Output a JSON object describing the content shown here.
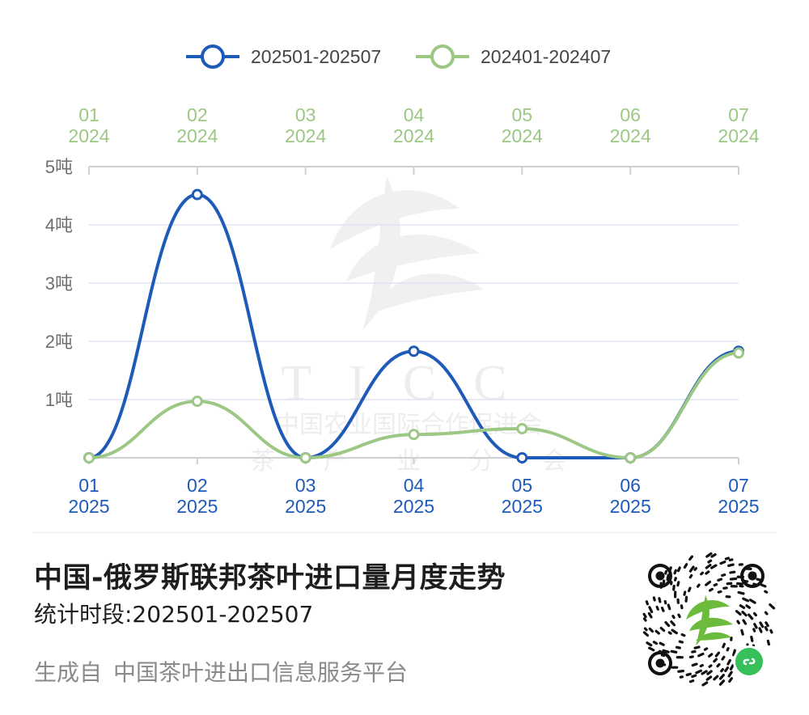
{
  "chart_data": {
    "type": "line",
    "legend": {
      "position": "top-center",
      "entries": [
        "202501-202507",
        "202401-202407"
      ]
    },
    "x_bottom": {
      "categories": [
        {
          "month": "01",
          "year": "2025"
        },
        {
          "month": "02",
          "year": "2025"
        },
        {
          "month": "03",
          "year": "2025"
        },
        {
          "month": "04",
          "year": "2025"
        },
        {
          "month": "05",
          "year": "2025"
        },
        {
          "month": "06",
          "year": "2025"
        },
        {
          "month": "07",
          "year": "2025"
        }
      ]
    },
    "x_top": {
      "categories": [
        {
          "month": "01",
          "year": "2024"
        },
        {
          "month": "02",
          "year": "2024"
        },
        {
          "month": "03",
          "year": "2024"
        },
        {
          "month": "04",
          "year": "2024"
        },
        {
          "month": "05",
          "year": "2024"
        },
        {
          "month": "06",
          "year": "2024"
        },
        {
          "month": "07",
          "year": "2024"
        }
      ]
    },
    "y_ticks": [
      "1吨",
      "2吨",
      "3吨",
      "4吨",
      "5吨"
    ],
    "ylim": [
      0,
      5
    ],
    "grid": true,
    "series": [
      {
        "name": "202501-202507",
        "color": "#1e5bb8",
        "values": [
          0,
          4.52,
          0,
          1.83,
          0,
          0,
          1.83
        ]
      },
      {
        "name": "202401-202407",
        "color": "#9cc784",
        "values": [
          0,
          0.97,
          0,
          0.4,
          0.5,
          0,
          1.8
        ]
      }
    ],
    "watermark": {
      "letters": "TICC",
      "line1": "中国农业国际合作促进会",
      "line2": [
        "茶",
        "产",
        "业",
        "分",
        "会"
      ]
    }
  },
  "footer": {
    "title": "中国-俄罗斯联邦茶叶进口量月度走势",
    "period": "统计时段:202501-202507",
    "source_prefix": "生成自",
    "source_name": "中国茶叶进出口信息服务平台"
  },
  "colors": {
    "series_2025": "#1e5bb8",
    "series_2024": "#9cc784",
    "grid": "#dde3f0",
    "axis_text": "#6e6e6e"
  },
  "icons": {
    "qr": "mini-program-qr-code-icon",
    "badge": "mini-program-link-icon"
  }
}
